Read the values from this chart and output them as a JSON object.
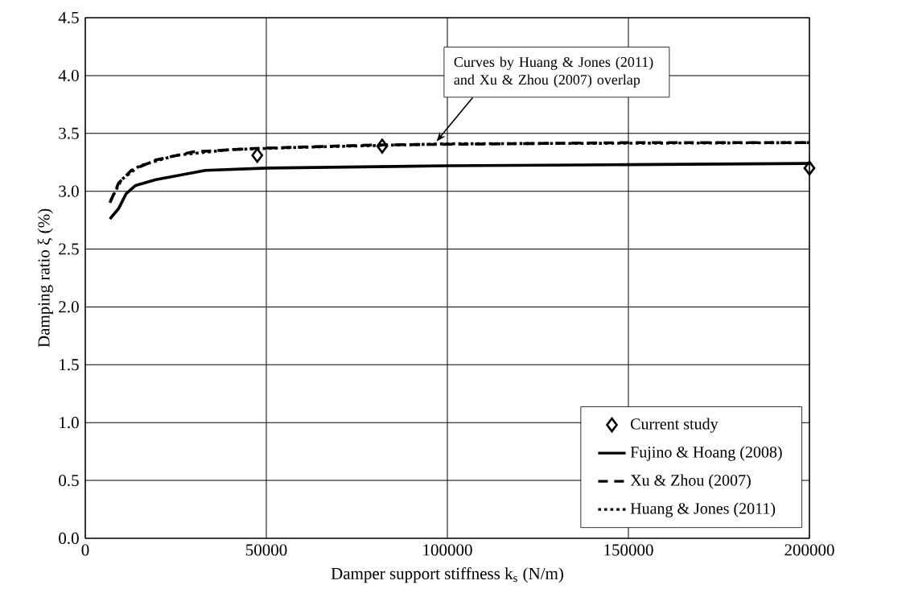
{
  "chart_data": {
    "type": "line",
    "xlabel": "Damper support stiffness  k$_{s}$  (N/m)",
    "ylabel": "Damping ratio ξ (%)",
    "xlim": [
      0,
      200000
    ],
    "ylim": [
      0,
      4.5
    ],
    "xticks": [
      0,
      50000,
      100000,
      150000,
      200000
    ],
    "yticks": [
      {
        "value": 0,
        "label": "0.0"
      },
      0.5,
      {
        "value": 1,
        "label": "1.0"
      },
      1.5,
      {
        "value": 2,
        "label": "2.0"
      },
      2.5,
      {
        "value": 3,
        "label": "3.0"
      },
      3.5,
      {
        "value": 4,
        "label": "4.0"
      },
      4.5
    ],
    "grid": true,
    "legend": "bottom right",
    "annotations": [
      {
        "text": "Curves by Huang & Jones (2011) and Xu & Zhou (2007) overlap",
        "x": 97000,
        "y": 3.43
      }
    ],
    "series": [
      {
        "name": "Current study",
        "type": "scatter",
        "marker": "diamond",
        "color": "#000000",
        "x": [
          47500,
          82000,
          200000
        ],
        "values": [
          3.31,
          3.39,
          3.2
        ]
      },
      {
        "name": "Fujino & Hoang (2008)",
        "line_style": "solid",
        "marker": "none",
        "color": "#000000",
        "x": [
          6800,
          9200,
          11300,
          13900,
          19500,
          33200,
          50200,
          100000,
          150000,
          200000
        ],
        "values": [
          2.76,
          2.85,
          2.98,
          3.05,
          3.1,
          3.18,
          3.2,
          3.22,
          3.23,
          3.24
        ]
      },
      {
        "name": "Xu & Zhou (2007)",
        "line_style": "dashed",
        "marker": "none",
        "color": "#000000",
        "x": [
          6800,
          9200,
          12700,
          19500,
          29700,
          46700,
          80000,
          150000,
          200000
        ],
        "values": [
          2.9,
          3.07,
          3.18,
          3.27,
          3.34,
          3.37,
          3.4,
          3.42,
          3.42
        ]
      },
      {
        "name": "Huang & Jones (2011)",
        "line_style": "dotted",
        "marker": "none",
        "color": "#000000",
        "x": [
          7000,
          10000,
          15000,
          25000,
          40000,
          60000,
          100000,
          200000
        ],
        "values": [
          2.92,
          3.1,
          3.22,
          3.31,
          3.36,
          3.38,
          3.41,
          3.42
        ]
      }
    ]
  }
}
